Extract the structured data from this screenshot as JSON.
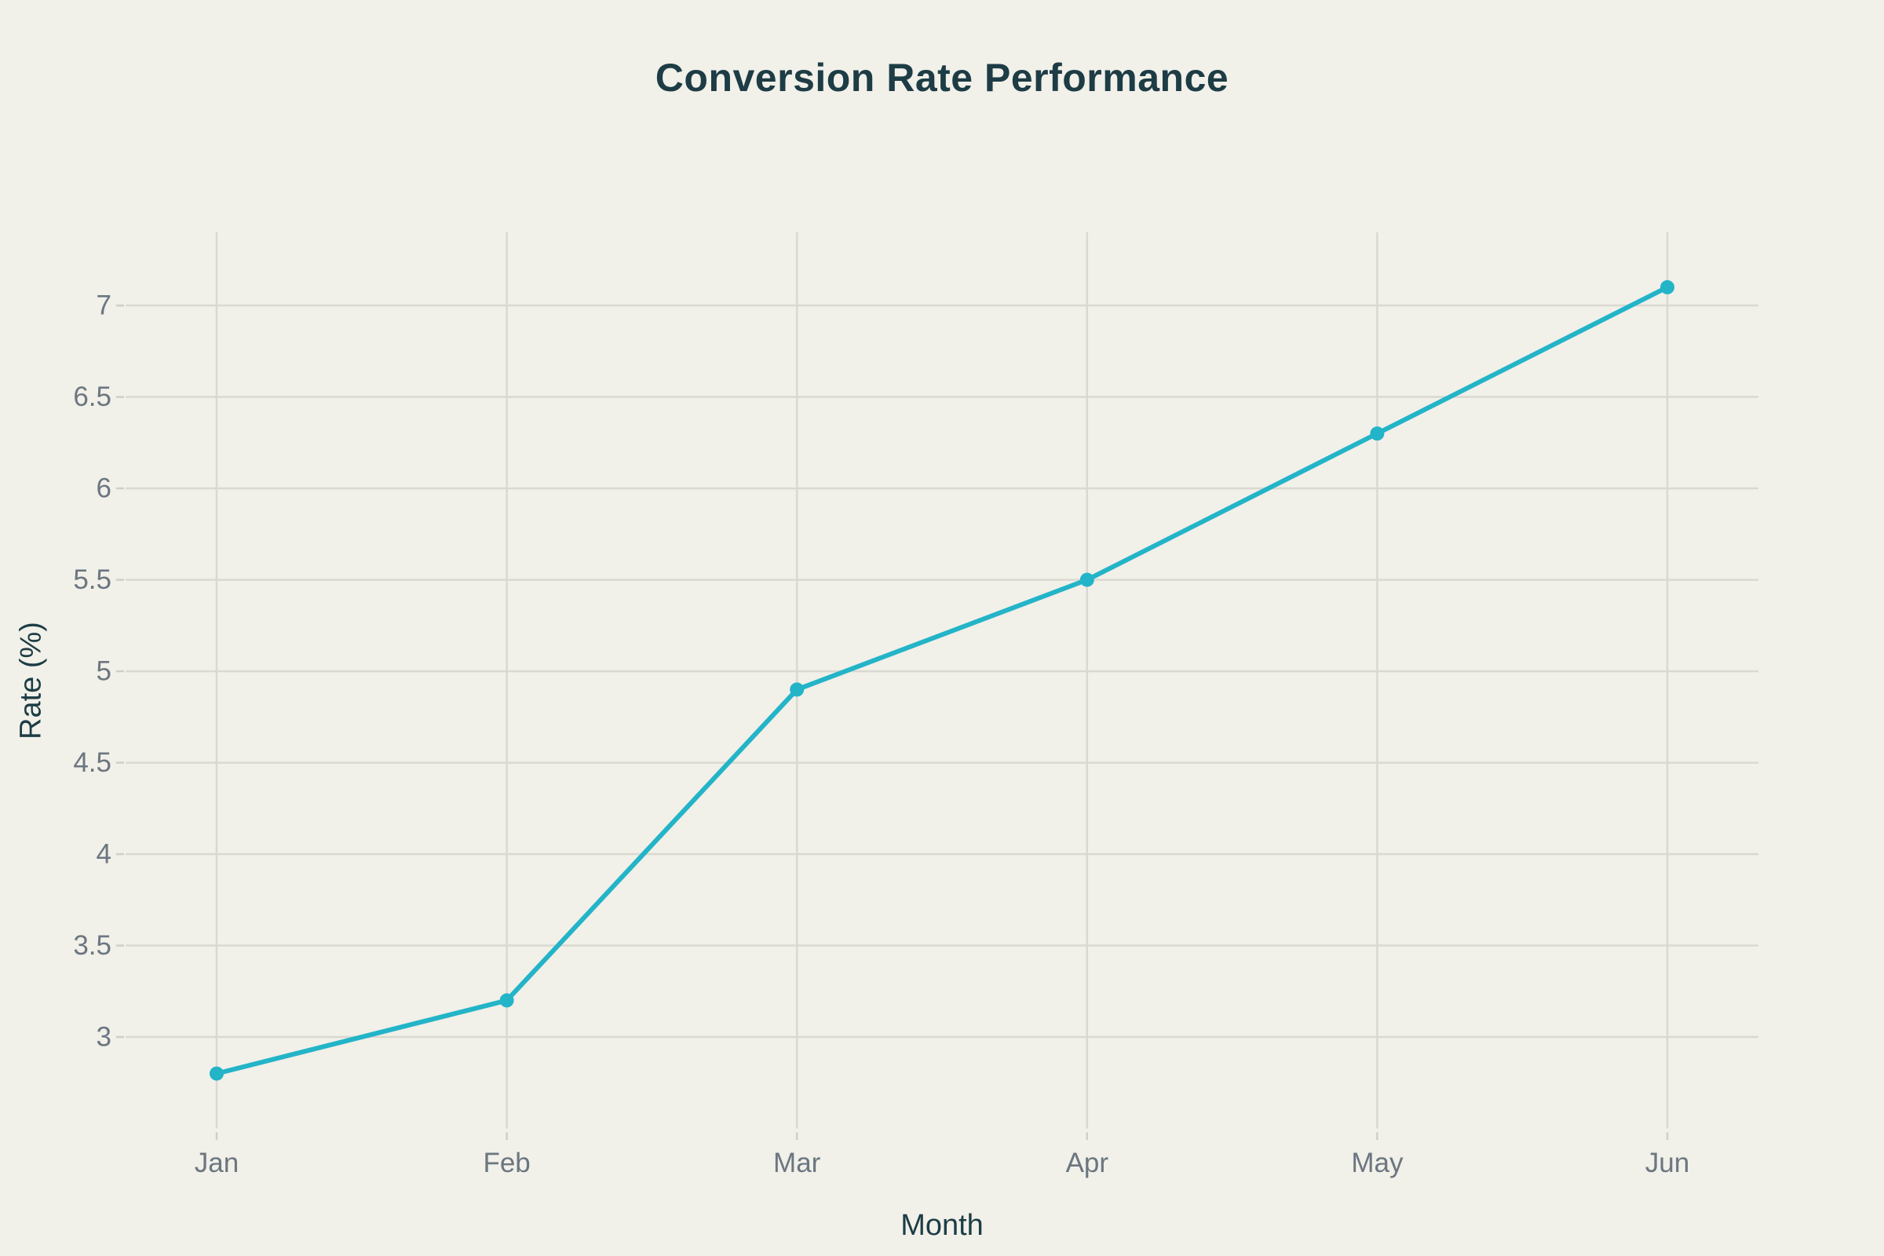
{
  "page": {
    "background_color": "#f1f0e9"
  },
  "chart_data": {
    "type": "line",
    "title": "Conversion Rate Performance",
    "xlabel": "Month",
    "ylabel": "Rate (%)",
    "categories": [
      "Jan",
      "Feb",
      "Mar",
      "Apr",
      "May",
      "Jun"
    ],
    "values": [
      2.8,
      3.2,
      4.9,
      5.5,
      6.3,
      7.1
    ],
    "yticks": [
      3,
      3.5,
      4,
      4.5,
      5,
      5.5,
      6,
      6.5,
      7
    ],
    "ylim": [
      2.5,
      7.4
    ],
    "grid": true,
    "legend": false,
    "marker_style": "circle",
    "colors": {
      "line": "#23b4c8",
      "marker": "#23b4c8",
      "grid": "#d9d9d2",
      "tick_mark": "#cfcfc8",
      "title_text": "#1d3c45",
      "axis_title_text": "#1d3c45",
      "tick_label_text": "#6b7680",
      "background": "#f1f0e9"
    }
  }
}
